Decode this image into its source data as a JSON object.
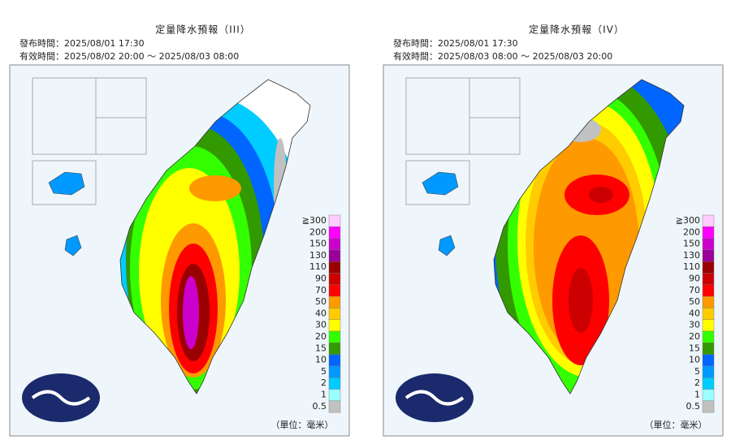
{
  "panels": [
    {
      "title": "定量降水預報（III）",
      "issued": "發布時間：2025/08/01 17:30",
      "valid": "有效時間：2025/08/02 20:00 ～ 2025/08/03 08:00",
      "unit": "（單位：毫米）"
    },
    {
      "title": "定量降水預報（IV）",
      "issued": "發布時間：2025/08/01 17:30",
      "valid": "有效時間：2025/08/03 08:00 ～ 2025/08/03 20:00",
      "unit": "（單位：毫米）"
    }
  ],
  "legend": [
    {
      "label": "≧300",
      "color": "#ffccff"
    },
    {
      "label": "200",
      "color": "#ff00ff"
    },
    {
      "label": "150",
      "color": "#cc00cc"
    },
    {
      "label": "130",
      "color": "#990099"
    },
    {
      "label": "110",
      "color": "#990000"
    },
    {
      "label": "90",
      "color": "#cc0000"
    },
    {
      "label": "70",
      "color": "#ff0000"
    },
    {
      "label": "50",
      "color": "#ff9900"
    },
    {
      "label": "40",
      "color": "#ffcc00"
    },
    {
      "label": "30",
      "color": "#ffff00"
    },
    {
      "label": "20",
      "color": "#33ff00"
    },
    {
      "label": "15",
      "color": "#339900"
    },
    {
      "label": "10",
      "color": "#0066ff"
    },
    {
      "label": "5",
      "color": "#0099ff"
    },
    {
      "label": "2",
      "color": "#00ccff"
    },
    {
      "label": "1",
      "color": "#99ffff"
    },
    {
      "label": "0.5",
      "color": "#c1c1c1"
    }
  ]
}
